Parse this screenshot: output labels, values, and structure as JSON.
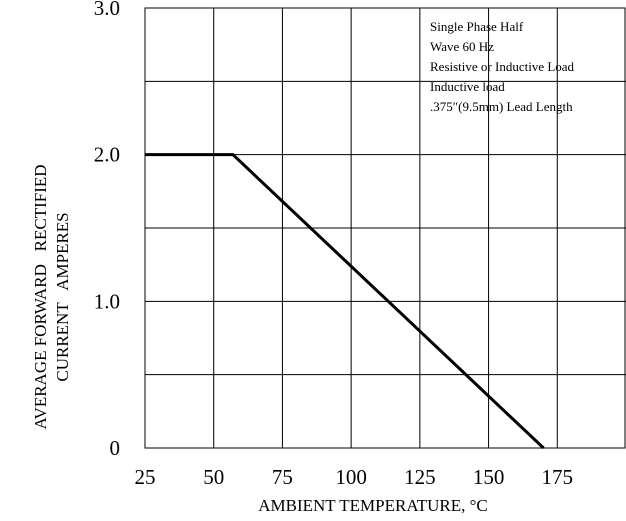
{
  "chart_data": {
    "type": "line",
    "title": "",
    "xlabel": "AMBIENT TEMPERATURE, °C",
    "ylabel_lines": [
      "AVERAGE FORWARD   RECTIFIED",
      "CURRENT   AMPERES"
    ],
    "xlim": [
      25,
      200
    ],
    "ylim": [
      0,
      3.0
    ],
    "x_ticks": [
      25,
      50,
      75,
      100,
      125,
      150,
      175
    ],
    "y_ticks": [
      {
        "value": 0,
        "label": "0"
      },
      {
        "value": 1.0,
        "label": "1.0"
      },
      {
        "value": 2.0,
        "label": "2.0"
      },
      {
        "value": 3.0,
        "label": "3.0"
      }
    ],
    "x_grid": [
      50,
      75,
      100,
      125,
      150,
      175
    ],
    "y_grid": [
      0.5,
      1.0,
      1.5,
      2.0,
      2.5
    ],
    "grid": true,
    "series": [
      {
        "x": [
          25,
          57,
          170
        ],
        "y": [
          2.0,
          2.0,
          0
        ]
      }
    ],
    "annotation_lines": [
      "Single Phase Half",
      "Wave 60 Hz",
      "Resistive or Inductive Load",
      "Inductive load",
      ".375″(9.5mm) Lead Length"
    ]
  }
}
